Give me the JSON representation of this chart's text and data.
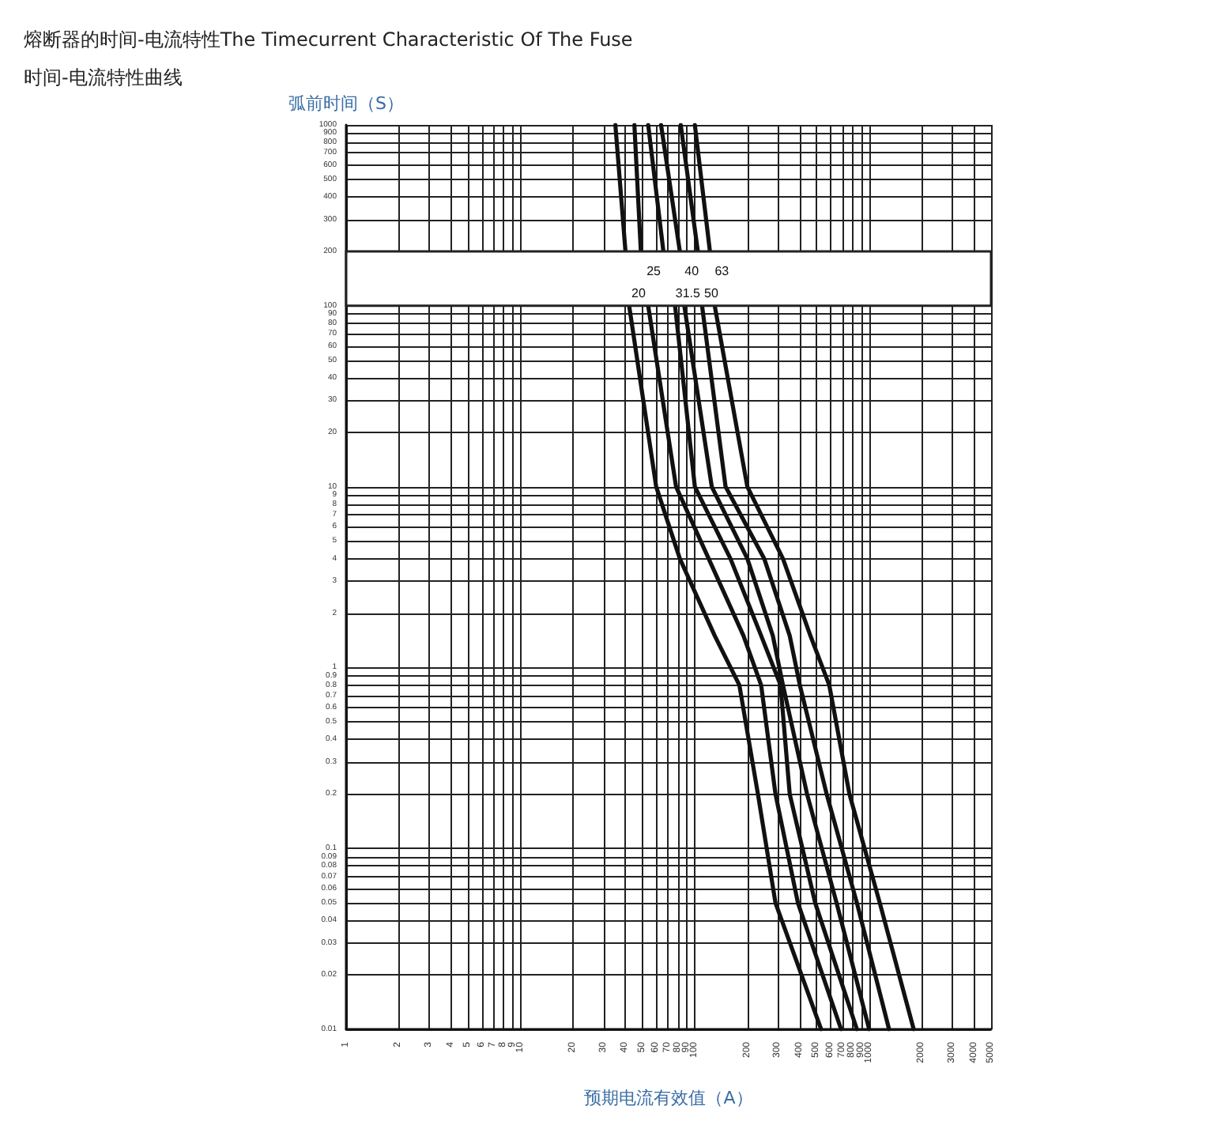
{
  "chart_data": {
    "type": "line",
    "title": "熔断器的时间-电流特性The Timecurrent Characteristic Of The Fuse",
    "subtitle": "时间-电流特性曲线",
    "xlabel": "预期电流有效值（A）",
    "ylabel": "弧前时间（S）",
    "log": "xy",
    "xlim": [
      1,
      5000
    ],
    "ylim": [
      0.01,
      1000
    ],
    "xticks": [
      1,
      2,
      3,
      4,
      5,
      6,
      7,
      8,
      9,
      10,
      20,
      30,
      40,
      50,
      60,
      70,
      80,
      90,
      100,
      200,
      300,
      400,
      500,
      600,
      700,
      800,
      900,
      1000,
      2000,
      3000,
      4000,
      5000
    ],
    "yticks": [
      0.01,
      0.02,
      0.03,
      0.04,
      0.05,
      0.06,
      0.07,
      0.08,
      0.09,
      0.1,
      0.2,
      0.3,
      0.4,
      0.5,
      0.6,
      0.7,
      0.8,
      0.9,
      1,
      2,
      3,
      4,
      5,
      6,
      7,
      8,
      9,
      10,
      20,
      30,
      40,
      50,
      60,
      70,
      80,
      90,
      100,
      200,
      300,
      400,
      500,
      600,
      700,
      800,
      900,
      1000
    ],
    "grid": true,
    "legend": false,
    "marker": "none",
    "line_style": "solid",
    "bands": [
      {
        "axis": "y",
        "from": 100,
        "to": 200,
        "color": "#ffffff"
      }
    ],
    "series": [
      {
        "name": "20",
        "color": "#111111",
        "x": [
          35,
          40,
          42,
          60,
          82,
          130,
          180,
          230,
          290,
          530
        ],
        "values": [
          1000,
          200,
          100,
          10,
          4,
          1.5,
          0.8,
          0.2,
          0.05,
          0.01
        ]
      },
      {
        "name": "25",
        "color": "#111111",
        "x": [
          45,
          49,
          54,
          78,
          120,
          190,
          240,
          290,
          390,
          690
        ],
        "values": [
          1000,
          200,
          100,
          10,
          4,
          1.5,
          0.8,
          0.2,
          0.05,
          0.01
        ]
      },
      {
        "name": "31.5",
        "color": "#111111",
        "x": [
          54,
          66,
          77,
          100,
          160,
          240,
          310,
          350,
          490,
          850
        ],
        "values": [
          1000,
          200,
          100,
          10,
          4,
          1.5,
          0.8,
          0.2,
          0.05,
          0.01
        ]
      },
      {
        "name": "40",
        "color": "#111111",
        "x": [
          64,
          82,
          87,
          125,
          200,
          280,
          320,
          440,
          650,
          1000
        ],
        "values": [
          1000,
          200,
          100,
          10,
          4,
          1.5,
          0.8,
          0.2,
          0.05,
          0.01
        ]
      },
      {
        "name": "50",
        "color": "#111111",
        "x": [
          83,
          104,
          110,
          150,
          250,
          350,
          400,
          570,
          850,
          1300
        ],
        "values": [
          1000,
          200,
          100,
          10,
          4,
          1.5,
          0.8,
          0.2,
          0.05,
          0.01
        ]
      },
      {
        "name": "63",
        "color": "#111111",
        "x": [
          100,
          122,
          130,
          200,
          320,
          460,
          590,
          770,
          1150,
          1800
        ],
        "values": [
          1000,
          200,
          100,
          10,
          4,
          1.5,
          0.8,
          0.2,
          0.05,
          0.01
        ]
      }
    ]
  }
}
